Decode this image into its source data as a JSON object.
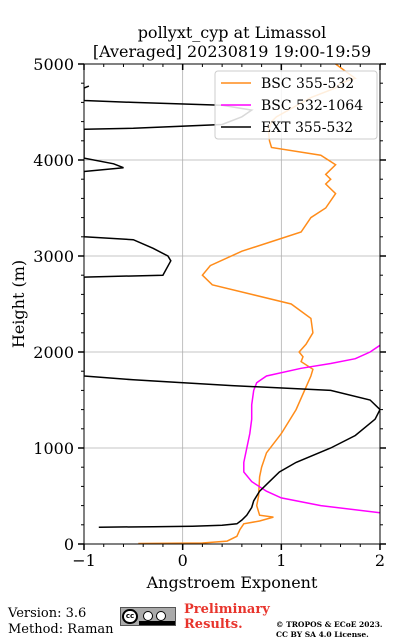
{
  "chart_data": {
    "type": "line",
    "title": "pollyxt_cyp at Limassol",
    "subtitle": "[Averaged] 20230819 19:00-19:59",
    "xlabel": "Angstroem Exponent",
    "ylabel": "Height (m)",
    "xlim": [
      -1,
      2
    ],
    "ylim": [
      0,
      5000
    ],
    "xticks": [
      -1,
      0,
      1,
      2
    ],
    "yticks": [
      0,
      1000,
      2000,
      3000,
      4000,
      5000
    ],
    "grid": true,
    "legend_position": "top-right",
    "series": [
      {
        "name": "BSC 355-532",
        "color": "#ff8c1a",
        "points": [
          [
            -0.45,
            5
          ],
          [
            0.2,
            10
          ],
          [
            0.45,
            30
          ],
          [
            0.55,
            80
          ],
          [
            0.58,
            150
          ],
          [
            0.62,
            210
          ],
          [
            0.78,
            240
          ],
          [
            0.92,
            280
          ],
          [
            0.78,
            300
          ],
          [
            0.75,
            400
          ],
          [
            0.77,
            500
          ],
          [
            0.78,
            700
          ],
          [
            0.8,
            800
          ],
          [
            0.85,
            950
          ],
          [
            1.0,
            1150
          ],
          [
            1.15,
            1400
          ],
          [
            1.3,
            1750
          ],
          [
            1.32,
            1820
          ],
          [
            1.2,
            1900
          ],
          [
            1.22,
            1950
          ],
          [
            1.18,
            2000
          ],
          [
            1.25,
            2080
          ],
          [
            1.32,
            2200
          ],
          [
            1.3,
            2350
          ],
          [
            1.1,
            2500
          ],
          [
            0.7,
            2600
          ],
          [
            0.3,
            2700
          ],
          [
            0.2,
            2800
          ],
          [
            0.28,
            2900
          ],
          [
            0.6,
            3050
          ],
          [
            0.9,
            3150
          ],
          [
            1.2,
            3250
          ],
          [
            1.3,
            3400
          ],
          [
            1.45,
            3500
          ],
          [
            1.55,
            3650
          ],
          [
            1.45,
            3750
          ],
          [
            1.5,
            3800
          ],
          [
            1.45,
            3850
          ],
          [
            1.55,
            3950
          ],
          [
            1.4,
            4050
          ],
          [
            0.9,
            4130
          ],
          [
            0.88,
            4200
          ],
          [
            0.87,
            4300
          ],
          [
            0.9,
            4400
          ],
          [
            0.95,
            4450
          ],
          [
            1.3,
            4650
          ],
          [
            1.55,
            4750
          ],
          [
            1.6,
            4800
          ],
          [
            1.75,
            4850
          ],
          [
            1.55,
            5000
          ]
        ]
      },
      {
        "name": "BSC 532-1064",
        "color": "#ff00ff",
        "points": [
          [
            2.0,
            325
          ],
          [
            1.4,
            400
          ],
          [
            1.0,
            480
          ],
          [
            0.85,
            550
          ],
          [
            0.7,
            650
          ],
          [
            0.62,
            750
          ],
          [
            0.62,
            850
          ],
          [
            0.65,
            1000
          ],
          [
            0.68,
            1150
          ],
          [
            0.7,
            1300
          ],
          [
            0.7,
            1450
          ],
          [
            0.72,
            1600
          ],
          [
            0.75,
            1680
          ],
          [
            0.85,
            1750
          ],
          [
            1.2,
            1830
          ],
          [
            1.5,
            1880
          ],
          [
            1.75,
            1930
          ],
          [
            1.9,
            2000
          ],
          [
            2.0,
            2070
          ]
        ]
      },
      {
        "name": "EXT 355-532",
        "color": "#000000",
        "points": [
          [
            -0.85,
            175
          ],
          [
            -0.3,
            180
          ],
          [
            0.1,
            185
          ],
          [
            0.4,
            195
          ],
          [
            0.55,
            210
          ],
          [
            0.6,
            250
          ],
          [
            0.65,
            300
          ],
          [
            0.7,
            380
          ],
          [
            0.72,
            450
          ],
          [
            0.78,
            550
          ],
          [
            0.88,
            650
          ],
          [
            0.98,
            750
          ],
          [
            1.15,
            850
          ],
          [
            1.5,
            1000
          ],
          [
            1.75,
            1130
          ],
          [
            1.95,
            1300
          ],
          [
            2.0,
            1400
          ],
          [
            1.9,
            1500
          ],
          [
            1.5,
            1600
          ],
          [
            0.5,
            1650
          ],
          [
            -0.5,
            1710
          ],
          [
            -1.0,
            1750
          ],
          [
            -1.0,
            2780
          ],
          [
            -0.2,
            2800
          ],
          [
            -0.12,
            2950
          ],
          [
            -0.15,
            3000
          ],
          [
            -0.3,
            3080
          ],
          [
            -0.5,
            3170
          ],
          [
            -1.0,
            3200
          ],
          [
            -1.0,
            3880
          ],
          [
            -0.6,
            3920
          ],
          [
            -0.7,
            3960
          ],
          [
            -1.0,
            4020
          ],
          [
            -1.0,
            4320
          ],
          [
            -0.5,
            4330
          ],
          [
            0.4,
            4370
          ],
          [
            0.6,
            4450
          ],
          [
            0.7,
            4520
          ],
          [
            0.4,
            4570
          ],
          [
            -0.5,
            4600
          ],
          [
            -1.0,
            4620
          ],
          [
            -1.0,
            4750
          ],
          [
            -0.95,
            4770
          ]
        ]
      }
    ]
  },
  "footer": {
    "version": "Version: 3.6",
    "method": "Method: Raman",
    "preliminary_line1": "Preliminary",
    "preliminary_line2": "Results.",
    "license_line1": "© TROPOS & ECoE 2023.",
    "license_line2": "CC BY SA 4.0 License.",
    "badge_text": "cc"
  }
}
